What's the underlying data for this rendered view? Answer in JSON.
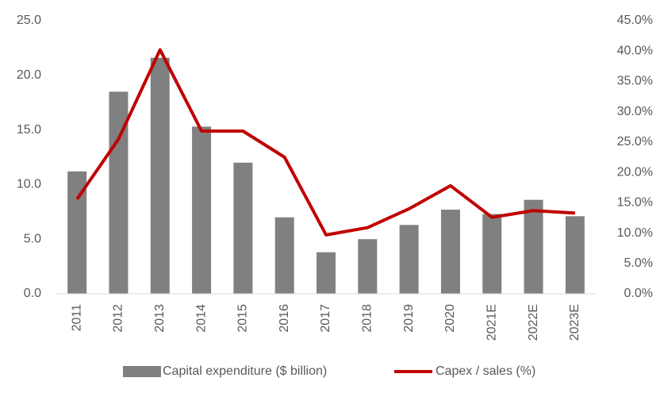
{
  "chart_data": {
    "type": "bar",
    "categories": [
      "2011",
      "2012",
      "2013",
      "2014",
      "2015",
      "2016",
      "2017",
      "2018",
      "2019",
      "2020",
      "2021E",
      "2022E",
      "2023E"
    ],
    "series": [
      {
        "name": "Capital expenditure ($ billion)",
        "type": "bar",
        "color": "#808080",
        "values": [
          11.2,
          18.5,
          21.6,
          15.3,
          12.0,
          7.0,
          3.8,
          5.0,
          6.3,
          7.7,
          7.3,
          8.6,
          7.1
        ]
      },
      {
        "name": "Capex / sales (%)",
        "type": "line",
        "axis": "y2",
        "color": "#c00000",
        "values": [
          15.6,
          25.5,
          40.2,
          26.8,
          26.8,
          22.5,
          9.7,
          10.9,
          14.0,
          17.8,
          12.6,
          13.7,
          13.3
        ]
      }
    ],
    "ylim": [
      0,
      25
    ],
    "yticks": [
      {
        "value": 0,
        "label": "0.0"
      },
      {
        "value": 5,
        "label": "5.0"
      },
      {
        "value": 10,
        "label": "10.0"
      },
      {
        "value": 15,
        "label": "15.0"
      },
      {
        "value": 20,
        "label": "20.0"
      },
      {
        "value": 25,
        "label": "25.0"
      }
    ],
    "y2lim": [
      0,
      45
    ],
    "y2ticks": [
      {
        "value": 0,
        "label": "0.0%"
      },
      {
        "value": 5,
        "label": "5.0%"
      },
      {
        "value": 10,
        "label": "10.0%"
      },
      {
        "value": 15,
        "label": "15.0%"
      },
      {
        "value": 20,
        "label": "20.0%"
      },
      {
        "value": 25,
        "label": "25.0%"
      },
      {
        "value": 30,
        "label": "30.0%"
      },
      {
        "value": 35,
        "label": "35.0%"
      },
      {
        "value": 40,
        "label": "40.0%"
      },
      {
        "value": 45,
        "label": "45.0%"
      }
    ],
    "grid": false,
    "legend": "bottom"
  }
}
